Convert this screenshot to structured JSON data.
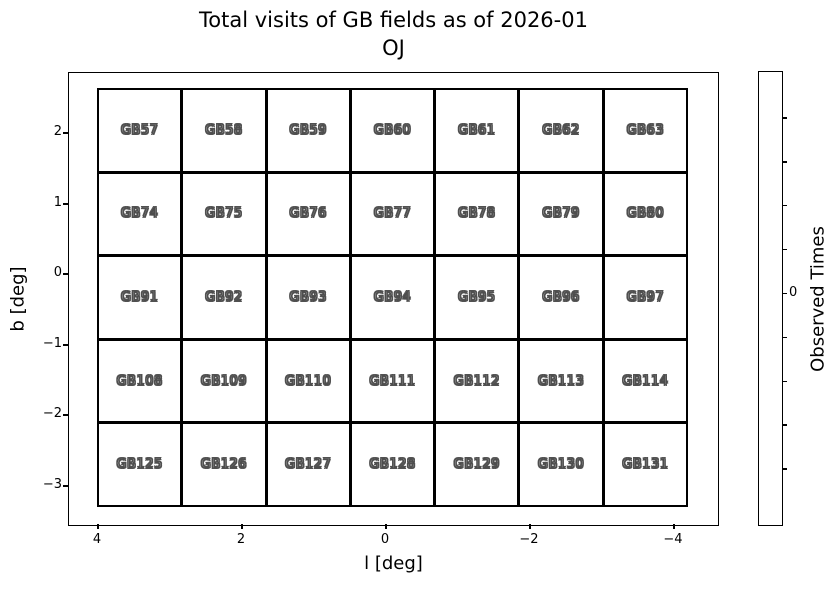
{
  "title": {
    "line1": "Total visits of GB fields as of 2026-01",
    "line2": "OJ"
  },
  "axes": {
    "xlabel": "l [deg]",
    "ylabel": "b [deg]",
    "xtick_labels": [
      "4",
      "2",
      "0",
      "−2",
      "−4"
    ],
    "ytick_labels": [
      "2",
      "1",
      "0",
      "−1",
      "−2",
      "−3"
    ]
  },
  "grid": {
    "rows": [
      [
        "GB57",
        "GB58",
        "GB59",
        "GB60",
        "GB61",
        "GB62",
        "GB63"
      ],
      [
        "GB74",
        "GB75",
        "GB76",
        "GB77",
        "GB78",
        "GB79",
        "GB80"
      ],
      [
        "GB91",
        "GB92",
        "GB93",
        "GB94",
        "GB95",
        "GB96",
        "GB97"
      ],
      [
        "GB108",
        "GB109",
        "GB110",
        "GB111",
        "GB112",
        "GB113",
        "GB114"
      ],
      [
        "GB125",
        "GB126",
        "GB127",
        "GB128",
        "GB129",
        "GB130",
        "GB131"
      ]
    ]
  },
  "colorbar": {
    "label": "Observed Times",
    "tick_label": "0",
    "num_ticks": 9
  },
  "colors": {
    "background": "#ffffff",
    "line": "#000000",
    "cell_fill": "#ffffff",
    "cell_text_fill": "#ffffff",
    "cell_text_outline": "#4d4d4d"
  },
  "chart_data": {
    "type": "heatmap",
    "title": "Total visits of GB fields as of 2026-01",
    "subtitle": "OJ",
    "xlabel": "l [deg]",
    "ylabel": "b [deg]",
    "x_ticks": [
      4,
      2,
      0,
      -2,
      -4
    ],
    "y_ticks": [
      2,
      1,
      0,
      -1,
      -2,
      -3
    ],
    "x_axis_inverted": true,
    "grid_shape": [
      5,
      7
    ],
    "categories": [
      [
        "GB57",
        "GB58",
        "GB59",
        "GB60",
        "GB61",
        "GB62",
        "GB63"
      ],
      [
        "GB74",
        "GB75",
        "GB76",
        "GB77",
        "GB78",
        "GB79",
        "GB80"
      ],
      [
        "GB91",
        "GB92",
        "GB93",
        "GB94",
        "GB95",
        "GB96",
        "GB97"
      ],
      [
        "GB108",
        "GB109",
        "GB110",
        "GB111",
        "GB112",
        "GB113",
        "GB114"
      ],
      [
        "GB125",
        "GB126",
        "GB127",
        "GB128",
        "GB129",
        "GB130",
        "GB131"
      ]
    ],
    "values": [
      [
        0,
        0,
        0,
        0,
        0,
        0,
        0
      ],
      [
        0,
        0,
        0,
        0,
        0,
        0,
        0
      ],
      [
        0,
        0,
        0,
        0,
        0,
        0,
        0
      ],
      [
        0,
        0,
        0,
        0,
        0,
        0,
        0
      ],
      [
        0,
        0,
        0,
        0,
        0,
        0,
        0
      ]
    ],
    "colorbar_label": "Observed Times",
    "colorbar_tick_labels": [
      0
    ],
    "legend": "none",
    "grid_on": false
  }
}
